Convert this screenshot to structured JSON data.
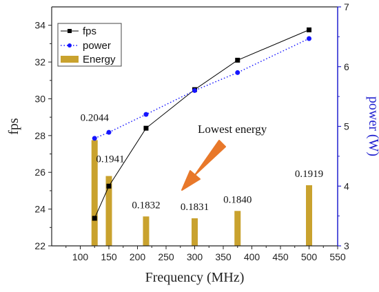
{
  "chart_data": {
    "type": "bar",
    "xlabel": "Frequency (MHz)",
    "ylabel_left": "fps",
    "ylabel_right": "power (W)",
    "xlim": [
      50,
      550
    ],
    "xticks": [
      100,
      150,
      200,
      250,
      300,
      350,
      400,
      450,
      500,
      550
    ],
    "ylim_left": [
      22,
      35
    ],
    "yticks_left": [
      22,
      24,
      26,
      28,
      30,
      32,
      34
    ],
    "ylim_right": [
      3,
      7
    ],
    "yticks_right": [
      3,
      4,
      5,
      6,
      7
    ],
    "x": [
      125,
      150,
      215,
      300,
      375,
      500
    ],
    "series": [
      {
        "name": "fps",
        "axis": "left",
        "style": "line-square",
        "color": "#000000",
        "values": [
          23.5,
          25.25,
          28.4,
          30.5,
          32.1,
          33.75
        ]
      },
      {
        "name": "power",
        "axis": "right",
        "style": "dotted-circle",
        "color": "#1515ff",
        "values": [
          4.8,
          4.9,
          5.2,
          5.6,
          5.9,
          6.47
        ]
      },
      {
        "name": "Energy",
        "axis": "left",
        "style": "bar",
        "color": "#c9a22e",
        "values": [
          27.75,
          25.8,
          23.6,
          23.5,
          23.9,
          25.3
        ],
        "labels": [
          "0.2044",
          "0.1941",
          "0.1832",
          "0.1831",
          "0.1840",
          "0.1919"
        ]
      }
    ],
    "legend": {
      "placement": "top-left"
    },
    "annotation": {
      "text": "Lowest energy",
      "color": "#e8782a"
    },
    "right_axis_color": "#1f1fcf",
    "grid": false
  }
}
